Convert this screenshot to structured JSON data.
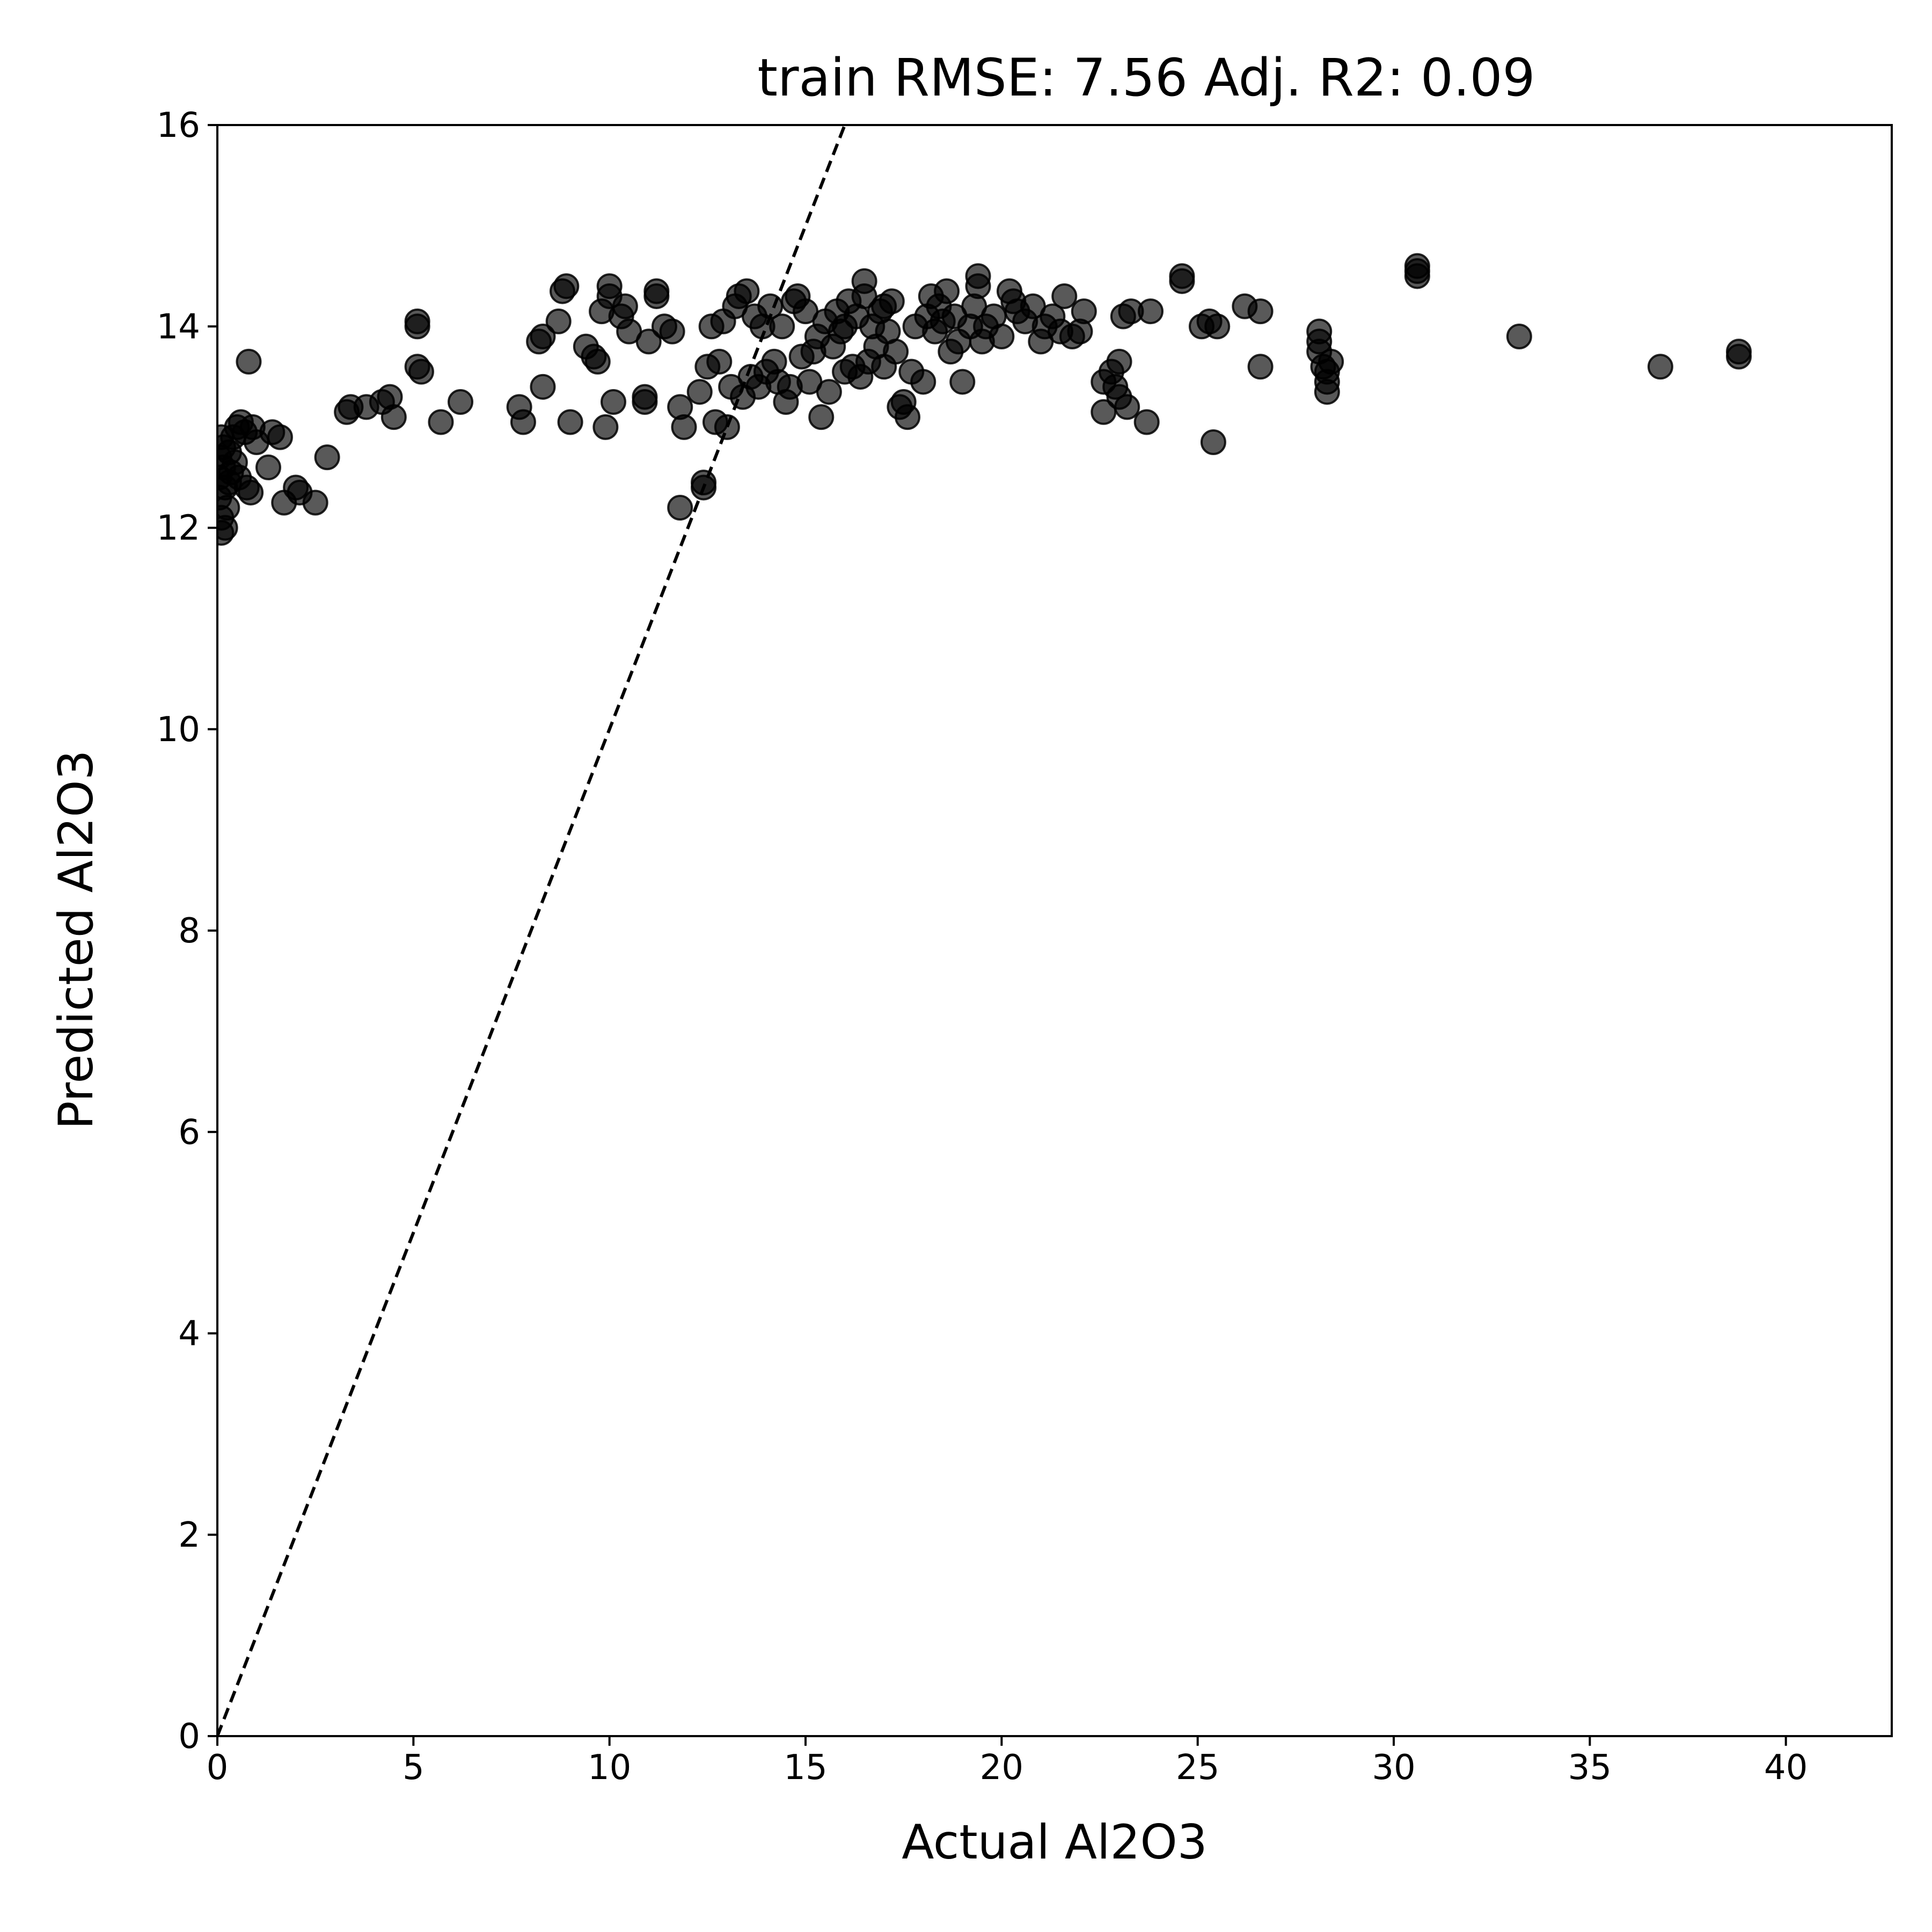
{
  "chart_data": {
    "type": "scatter",
    "title": "train RMSE: 7.56    Adj. R2: 0.09",
    "xlabel": "Actual Al2O3",
    "ylabel": "Predicted Al2O3",
    "xlim": [
      0,
      42.7
    ],
    "ylim": [
      0,
      16
    ],
    "xticks": [
      0,
      5,
      10,
      15,
      20,
      25,
      30,
      35,
      40
    ],
    "yticks": [
      0,
      2,
      4,
      6,
      8,
      10,
      12,
      14,
      16
    ],
    "grid": false,
    "reference_line": {
      "from": [
        0,
        0
      ],
      "to": [
        16,
        16
      ],
      "style": "dashed",
      "color": "#000000"
    },
    "marker_color": "#000000",
    "marker_alpha": 0.65,
    "points": [
      [
        0.05,
        12.5
      ],
      [
        0.05,
        12.7
      ],
      [
        0.05,
        12.3
      ],
      [
        0.1,
        12.9
      ],
      [
        0.1,
        12.1
      ],
      [
        0.1,
        11.95
      ],
      [
        0.15,
        12.6
      ],
      [
        0.15,
        12.8
      ],
      [
        0.2,
        12.4
      ],
      [
        0.2,
        12.0
      ],
      [
        0.25,
        12.2
      ],
      [
        0.3,
        12.75
      ],
      [
        0.3,
        12.45
      ],
      [
        0.35,
        12.55
      ],
      [
        0.4,
        12.9
      ],
      [
        0.45,
        12.65
      ],
      [
        0.5,
        13.0
      ],
      [
        0.55,
        12.5
      ],
      [
        0.6,
        13.05
      ],
      [
        0.7,
        12.95
      ],
      [
        0.75,
        12.4
      ],
      [
        0.8,
        13.65
      ],
      [
        0.85,
        12.35
      ],
      [
        0.9,
        13.0
      ],
      [
        1.0,
        12.85
      ],
      [
        1.3,
        12.6
      ],
      [
        1.4,
        12.95
      ],
      [
        1.6,
        12.9
      ],
      [
        1.7,
        12.25
      ],
      [
        2.0,
        12.4
      ],
      [
        2.1,
        12.35
      ],
      [
        2.5,
        12.25
      ],
      [
        2.8,
        12.7
      ],
      [
        3.3,
        13.15
      ],
      [
        3.4,
        13.2
      ],
      [
        3.8,
        13.2
      ],
      [
        4.2,
        13.25
      ],
      [
        4.4,
        13.3
      ],
      [
        4.5,
        13.1
      ],
      [
        5.1,
        14.0
      ],
      [
        5.1,
        14.05
      ],
      [
        5.1,
        13.6
      ],
      [
        5.2,
        13.55
      ],
      [
        5.7,
        13.05
      ],
      [
        6.2,
        13.25
      ],
      [
        7.7,
        13.2
      ],
      [
        7.8,
        13.05
      ],
      [
        8.2,
        13.85
      ],
      [
        8.3,
        13.4
      ],
      [
        8.3,
        13.9
      ],
      [
        8.7,
        14.05
      ],
      [
        8.8,
        14.35
      ],
      [
        8.9,
        14.4
      ],
      [
        9.0,
        13.05
      ],
      [
        9.4,
        13.8
      ],
      [
        9.6,
        13.7
      ],
      [
        9.7,
        13.65
      ],
      [
        9.8,
        14.15
      ],
      [
        9.9,
        13.0
      ],
      [
        10.0,
        14.3
      ],
      [
        10.0,
        14.4
      ],
      [
        10.1,
        13.25
      ],
      [
        10.3,
        14.1
      ],
      [
        10.4,
        14.2
      ],
      [
        10.5,
        13.95
      ],
      [
        10.9,
        13.25
      ],
      [
        10.9,
        13.3
      ],
      [
        11.0,
        13.85
      ],
      [
        11.2,
        14.3
      ],
      [
        11.2,
        14.35
      ],
      [
        11.4,
        14.0
      ],
      [
        11.6,
        13.95
      ],
      [
        11.8,
        13.2
      ],
      [
        11.8,
        12.2
      ],
      [
        11.9,
        13.0
      ],
      [
        12.3,
        13.35
      ],
      [
        12.4,
        12.4
      ],
      [
        12.4,
        12.45
      ],
      [
        12.5,
        13.6
      ],
      [
        12.6,
        14.0
      ],
      [
        12.7,
        13.05
      ],
      [
        12.8,
        13.65
      ],
      [
        12.9,
        14.05
      ],
      [
        13.0,
        13.0
      ],
      [
        13.1,
        13.4
      ],
      [
        13.2,
        14.2
      ],
      [
        13.3,
        14.3
      ],
      [
        13.4,
        13.3
      ],
      [
        13.5,
        14.35
      ],
      [
        13.6,
        13.5
      ],
      [
        13.7,
        14.1
      ],
      [
        13.8,
        13.4
      ],
      [
        13.9,
        14.0
      ],
      [
        14.0,
        13.55
      ],
      [
        14.1,
        14.2
      ],
      [
        14.2,
        13.65
      ],
      [
        14.3,
        13.45
      ],
      [
        14.4,
        14.0
      ],
      [
        14.5,
        13.25
      ],
      [
        14.6,
        13.4
      ],
      [
        14.7,
        14.25
      ],
      [
        14.8,
        14.3
      ],
      [
        14.9,
        13.7
      ],
      [
        15.0,
        14.15
      ],
      [
        15.1,
        13.45
      ],
      [
        15.2,
        13.75
      ],
      [
        15.3,
        13.9
      ],
      [
        15.4,
        13.1
      ],
      [
        15.5,
        14.05
      ],
      [
        15.6,
        13.35
      ],
      [
        15.7,
        13.8
      ],
      [
        15.8,
        14.15
      ],
      [
        15.9,
        13.95
      ],
      [
        16.0,
        14.0
      ],
      [
        16.0,
        13.55
      ],
      [
        16.1,
        14.25
      ],
      [
        16.2,
        13.6
      ],
      [
        16.3,
        14.1
      ],
      [
        16.4,
        13.5
      ],
      [
        16.5,
        14.45
      ],
      [
        16.5,
        14.3
      ],
      [
        16.6,
        13.65
      ],
      [
        16.7,
        14.0
      ],
      [
        16.8,
        13.8
      ],
      [
        16.9,
        14.15
      ],
      [
        17.0,
        13.6
      ],
      [
        17.0,
        14.2
      ],
      [
        17.1,
        13.95
      ],
      [
        17.2,
        14.25
      ],
      [
        17.3,
        13.75
      ],
      [
        17.4,
        13.2
      ],
      [
        17.5,
        13.25
      ],
      [
        17.6,
        13.1
      ],
      [
        17.7,
        13.55
      ],
      [
        17.8,
        14.0
      ],
      [
        18.0,
        13.45
      ],
      [
        18.1,
        14.1
      ],
      [
        18.2,
        14.3
      ],
      [
        18.3,
        13.95
      ],
      [
        18.4,
        14.2
      ],
      [
        18.5,
        14.05
      ],
      [
        18.6,
        14.35
      ],
      [
        18.7,
        13.75
      ],
      [
        18.8,
        14.1
      ],
      [
        18.9,
        13.85
      ],
      [
        19.0,
        13.45
      ],
      [
        19.2,
        14.0
      ],
      [
        19.3,
        14.2
      ],
      [
        19.4,
        14.5
      ],
      [
        19.4,
        14.4
      ],
      [
        19.5,
        13.85
      ],
      [
        19.6,
        14.0
      ],
      [
        19.8,
        14.1
      ],
      [
        20.0,
        13.9
      ],
      [
        20.2,
        14.35
      ],
      [
        20.3,
        14.25
      ],
      [
        20.4,
        14.15
      ],
      [
        20.6,
        14.05
      ],
      [
        20.8,
        14.2
      ],
      [
        21.0,
        13.85
      ],
      [
        21.1,
        14.0
      ],
      [
        21.3,
        14.1
      ],
      [
        21.5,
        13.95
      ],
      [
        21.6,
        14.3
      ],
      [
        21.8,
        13.9
      ],
      [
        22.0,
        13.95
      ],
      [
        22.1,
        14.15
      ],
      [
        22.6,
        13.15
      ],
      [
        22.6,
        13.45
      ],
      [
        22.8,
        13.55
      ],
      [
        22.9,
        13.4
      ],
      [
        23.0,
        13.3
      ],
      [
        23.0,
        13.65
      ],
      [
        23.1,
        14.1
      ],
      [
        23.2,
        13.2
      ],
      [
        23.3,
        14.15
      ],
      [
        23.7,
        13.05
      ],
      [
        23.8,
        14.15
      ],
      [
        24.6,
        14.5
      ],
      [
        24.6,
        14.45
      ],
      [
        25.1,
        14.0
      ],
      [
        25.3,
        14.05
      ],
      [
        25.4,
        12.85
      ],
      [
        25.5,
        14.0
      ],
      [
        26.2,
        14.2
      ],
      [
        26.6,
        14.15
      ],
      [
        26.6,
        13.6
      ],
      [
        28.1,
        13.95
      ],
      [
        28.1,
        13.85
      ],
      [
        28.1,
        13.75
      ],
      [
        28.2,
        13.6
      ],
      [
        28.3,
        13.55
      ],
      [
        28.3,
        13.45
      ],
      [
        28.3,
        13.35
      ],
      [
        28.4,
        13.65
      ],
      [
        30.6,
        14.55
      ],
      [
        30.6,
        14.6
      ],
      [
        30.6,
        14.5
      ],
      [
        33.2,
        13.9
      ],
      [
        36.8,
        13.6
      ],
      [
        38.8,
        13.7
      ],
      [
        38.8,
        13.75
      ]
    ]
  }
}
